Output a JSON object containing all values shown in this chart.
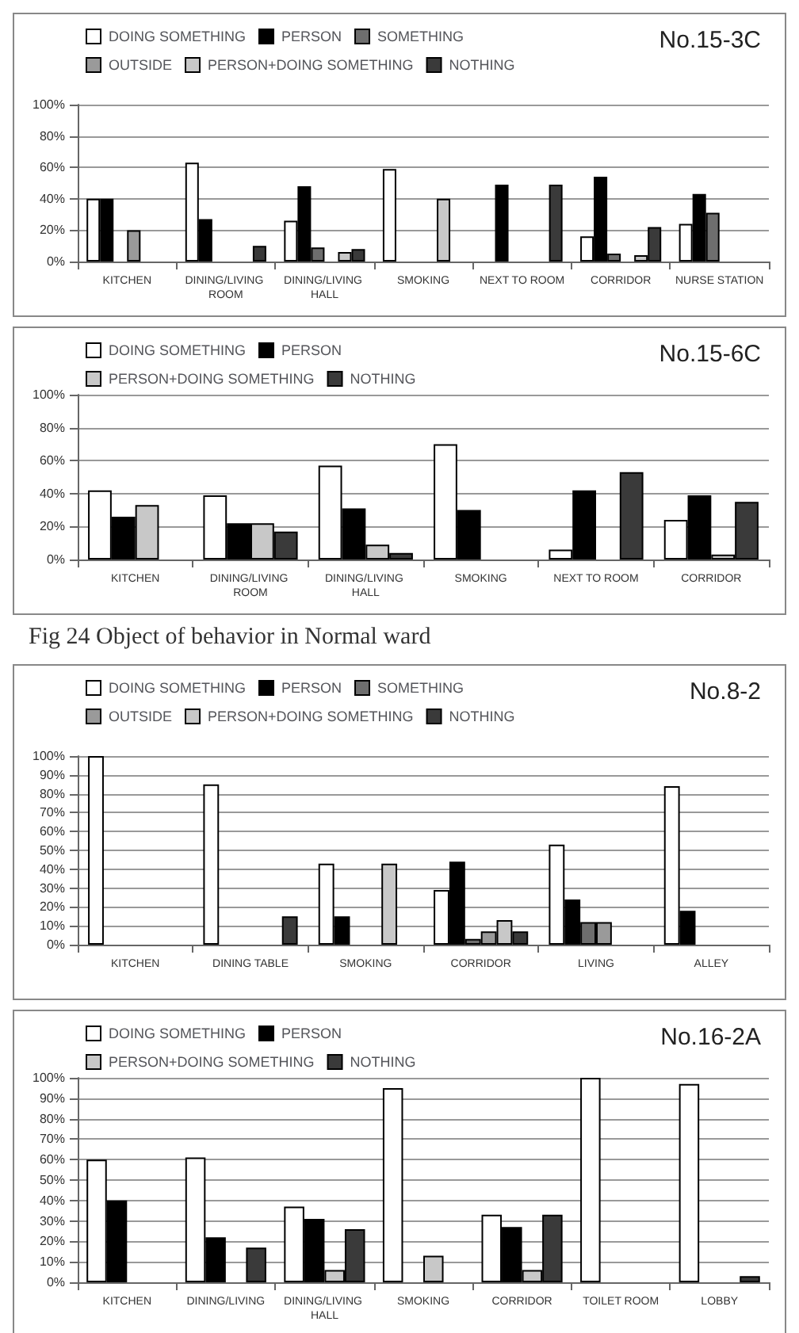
{
  "chart_data": [
    {
      "type": "bar",
      "title": "No.15-3C",
      "categories": [
        "KITCHEN",
        "DINING/LIVING ROOM",
        "DINING/LIVING HALL",
        "SMOKING",
        "NEXT TO ROOM",
        "CORRIDOR",
        "NURSE STATION"
      ],
      "ylim": [
        0,
        100
      ],
      "yticks": [
        {
          "value": 0,
          "label": "0%"
        },
        {
          "value": 20,
          "label": "20%"
        },
        {
          "value": 40,
          "label": "40%"
        },
        {
          "value": 60,
          "label": "60%"
        },
        {
          "value": 80,
          "label": "80%"
        },
        {
          "value": 100,
          "label": "100%"
        }
      ],
      "grid": "y",
      "legend": "top left",
      "series": [
        {
          "name": "DOING SOMETHING",
          "color": "#ffffff",
          "values": [
            40,
            63,
            26,
            59,
            null,
            16,
            24
          ]
        },
        {
          "name": "PERSON",
          "color": "#000000",
          "values": [
            40,
            27,
            48,
            null,
            49,
            54,
            43
          ]
        },
        {
          "name": "SOMETHING",
          "color": "#6e6e6e",
          "values": [
            null,
            null,
            9,
            null,
            null,
            5,
            31
          ]
        },
        {
          "name": "OUTSIDE",
          "color": "#9a9a9a",
          "values": [
            20,
            null,
            null,
            null,
            null,
            null,
            null
          ]
        },
        {
          "name": "PERSON+DOING SOMETHING",
          "color": "#c8c8c8",
          "values": [
            null,
            null,
            6,
            40,
            null,
            4,
            null
          ]
        },
        {
          "name": "NOTHING",
          "color": "#3a3a3a",
          "values": [
            null,
            10,
            8,
            null,
            49,
            22,
            null
          ]
        }
      ]
    },
    {
      "type": "bar",
      "title": "No.15-6C",
      "categories": [
        "KITCHEN",
        "DINING/LIVING ROOM",
        "DINING/LIVING HALL",
        "SMOKING",
        "NEXT TO ROOM",
        "CORRIDOR"
      ],
      "ylim": [
        0,
        100
      ],
      "yticks": [
        {
          "value": 0,
          "label": "0%"
        },
        {
          "value": 20,
          "label": "20%"
        },
        {
          "value": 40,
          "label": "40%"
        },
        {
          "value": 60,
          "label": "60%"
        },
        {
          "value": 80,
          "label": "80%"
        },
        {
          "value": 100,
          "label": "100%"
        }
      ],
      "grid": "y",
      "legend": "top left",
      "annotations": [
        "Fig 24  Object of behavior in Normal ward"
      ],
      "series": [
        {
          "name": "DOING SOMETHING",
          "color": "#ffffff",
          "values": [
            42,
            39,
            57,
            70,
            6,
            24
          ]
        },
        {
          "name": "PERSON",
          "color": "#000000",
          "values": [
            26,
            22,
            31,
            30,
            42,
            39
          ]
        },
        {
          "name": "PERSON+DOING SOMETHING",
          "color": "#c8c8c8",
          "values": [
            33,
            22,
            9,
            null,
            null,
            3
          ]
        },
        {
          "name": "NOTHING",
          "color": "#3a3a3a",
          "values": [
            null,
            17,
            4,
            null,
            53,
            35
          ]
        }
      ]
    },
    {
      "type": "bar",
      "title": "No.8-2",
      "categories": [
        "KITCHEN",
        "DINING TABLE",
        "SMOKING",
        "CORRIDOR",
        "LIVING",
        "ALLEY"
      ],
      "ylim": [
        0,
        100
      ],
      "yticks": [
        {
          "value": 0,
          "label": "0%"
        },
        {
          "value": 10,
          "label": "10%"
        },
        {
          "value": 20,
          "label": "20%"
        },
        {
          "value": 30,
          "label": "30%"
        },
        {
          "value": 40,
          "label": "40%"
        },
        {
          "value": 50,
          "label": "50%"
        },
        {
          "value": 60,
          "label": "60%"
        },
        {
          "value": 70,
          "label": "70%"
        },
        {
          "value": 80,
          "label": "80%"
        },
        {
          "value": 90,
          "label": "90%"
        },
        {
          "value": 100,
          "label": "100%"
        }
      ],
      "grid": "y",
      "legend": "top left",
      "series": [
        {
          "name": "DOING SOMETHING",
          "color": "#ffffff",
          "values": [
            100,
            85,
            43,
            29,
            53,
            84
          ]
        },
        {
          "name": "PERSON",
          "color": "#000000",
          "values": [
            null,
            null,
            15,
            44,
            24,
            18
          ]
        },
        {
          "name": "SOMETHING",
          "color": "#6e6e6e",
          "values": [
            null,
            null,
            null,
            3,
            12,
            null
          ]
        },
        {
          "name": "OUTSIDE",
          "color": "#9a9a9a",
          "values": [
            null,
            null,
            null,
            7,
            12,
            null
          ]
        },
        {
          "name": "PERSON+DOING SOMETHING",
          "color": "#c8c8c8",
          "values": [
            null,
            null,
            43,
            13,
            null,
            null
          ]
        },
        {
          "name": "NOTHING",
          "color": "#3a3a3a",
          "values": [
            null,
            15,
            null,
            7,
            null,
            null
          ]
        }
      ]
    },
    {
      "type": "bar",
      "title": "No.16-2A",
      "categories": [
        "KITCHEN",
        "DINING/LIVING",
        "DINING/LIVING HALL",
        "SMOKING",
        "CORRIDOR",
        "TOILET ROOM",
        "LOBBY"
      ],
      "ylim": [
        0,
        100
      ],
      "yticks": [
        {
          "value": 0,
          "label": "0%"
        },
        {
          "value": 10,
          "label": "10%"
        },
        {
          "value": 20,
          "label": "20%"
        },
        {
          "value": 30,
          "label": "30%"
        },
        {
          "value": 40,
          "label": "40%"
        },
        {
          "value": 50,
          "label": "50%"
        },
        {
          "value": 60,
          "label": "60%"
        },
        {
          "value": 70,
          "label": "70%"
        },
        {
          "value": 80,
          "label": "80%"
        },
        {
          "value": 90,
          "label": "90%"
        },
        {
          "value": 100,
          "label": "100%"
        }
      ],
      "grid": "y",
      "legend": "top left",
      "series": [
        {
          "name": "DOING SOMETHING",
          "color": "#ffffff",
          "values": [
            60,
            61,
            37,
            95,
            33,
            100,
            97
          ]
        },
        {
          "name": "PERSON",
          "color": "#000000",
          "values": [
            40,
            22,
            31,
            null,
            27,
            null,
            null
          ]
        },
        {
          "name": "PERSON+DOING SOMETHING",
          "color": "#c8c8c8",
          "values": [
            null,
            null,
            6,
            13,
            6,
            null,
            null
          ]
        },
        {
          "name": "NOTHING",
          "color": "#3a3a3a",
          "values": [
            null,
            17,
            26,
            null,
            33,
            null,
            3
          ]
        }
      ]
    }
  ]
}
